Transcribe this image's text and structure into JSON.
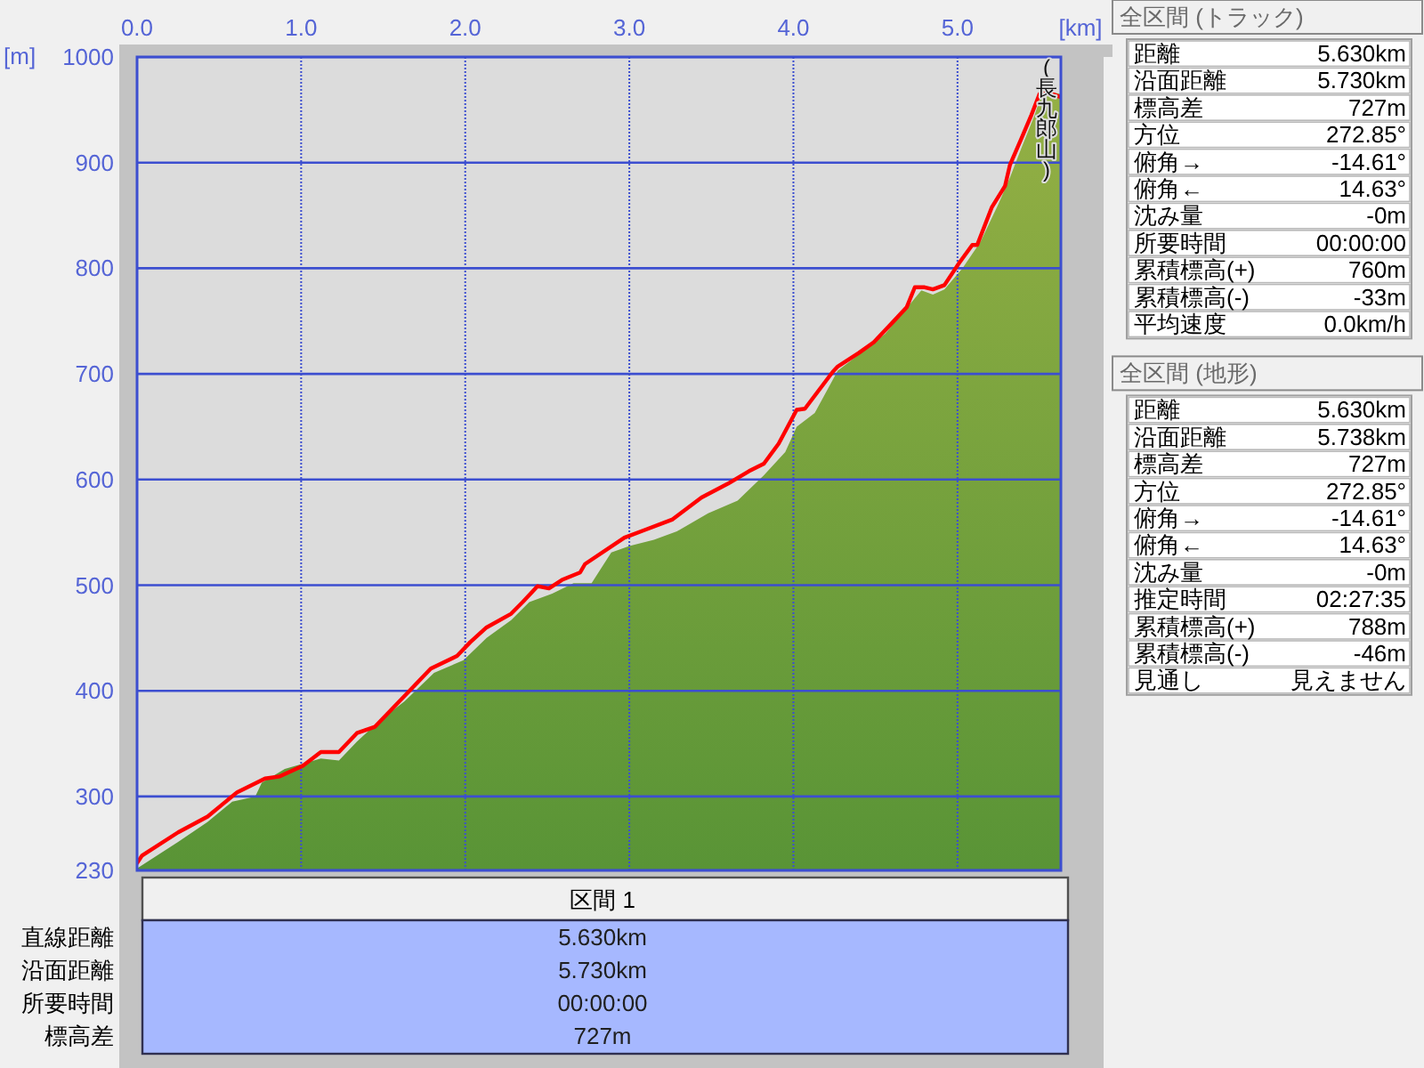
{
  "chart_data": [
    {
      "type": "area",
      "xlabel": "[km]",
      "ylabel": "[m]",
      "xlim": [
        0,
        5.63
      ],
      "ylim": [
        230,
        1000
      ],
      "xticks": [
        {
          "value": 0,
          "label": "0.0"
        },
        {
          "value": 1,
          "label": "1.0"
        },
        {
          "value": 2,
          "label": "2.0"
        },
        {
          "value": 3,
          "label": "3.0"
        },
        {
          "value": 4,
          "label": "4.0"
        },
        {
          "value": 5,
          "label": "5.0"
        }
      ],
      "yticks": [
        230,
        300,
        400,
        500,
        600,
        700,
        800,
        900,
        1000
      ],
      "grid": true,
      "annotations": [
        "(長九郎山)"
      ],
      "series": [
        {
          "type": "area",
          "color": "#6f9f3c",
          "x": [
            0,
            0.25,
            0.43,
            0.58,
            0.72,
            0.76,
            0.9,
            1.12,
            1.23,
            1.34,
            1.48,
            1.63,
            1.81,
            1.99,
            2.13,
            2.28,
            2.39,
            2.53,
            2.66,
            2.77,
            2.89,
            3.0,
            3.15,
            3.29,
            3.48,
            3.66,
            3.82,
            3.95,
            4.02,
            4.13,
            4.27,
            4.43,
            4.56,
            4.71,
            4.78,
            4.85,
            4.92,
            5.03,
            5.14,
            5.25,
            5.32,
            5.39,
            5.47,
            5.52,
            5.63
          ],
          "values": [
            232,
            257,
            276,
            295,
            300,
            313,
            326,
            336,
            334,
            352,
            372,
            390,
            417,
            429,
            450,
            467,
            484,
            492,
            502,
            502,
            531,
            537,
            543,
            551,
            568,
            580,
            604,
            626,
            650,
            663,
            703,
            722,
            738,
            766,
            779,
            775,
            780,
            800,
            825,
            861,
            886,
            914,
            945,
            968,
            965
          ]
        },
        {
          "type": "line",
          "color": "#ff0000",
          "x": [
            0,
            0.03,
            0.25,
            0.43,
            0.61,
            0.78,
            0.87,
            1.01,
            1.12,
            1.23,
            1.34,
            1.45,
            1.66,
            1.79,
            1.95,
            2.03,
            2.13,
            2.28,
            2.35,
            2.44,
            2.51,
            2.59,
            2.7,
            2.73,
            2.97,
            3.09,
            3.26,
            3.44,
            3.6,
            3.73,
            3.82,
            3.91,
            4.02,
            4.07,
            4.24,
            4.27,
            4.4,
            4.49,
            4.6,
            4.69,
            4.74,
            4.8,
            4.85,
            4.92,
            5.01,
            5.09,
            5.12,
            5.21,
            5.29,
            5.32,
            5.39,
            5.45,
            5.5,
            5.56,
            5.63
          ],
          "values": [
            237,
            244,
            266,
            281,
            304,
            317,
            319,
            329,
            342,
            342,
            360,
            366,
            400,
            421,
            433,
            446,
            460,
            473,
            484,
            499,
            497,
            505,
            512,
            520,
            545,
            552,
            562,
            583,
            596,
            608,
            615,
            634,
            666,
            667,
            702,
            707,
            720,
            730,
            748,
            763,
            782,
            782,
            780,
            784,
            805,
            822,
            822,
            858,
            878,
            898,
            923,
            945,
            965,
            966,
            962
          ]
        }
      ]
    },
    {
      "type": "other",
      "title": "全区間 (トラック)",
      "annotations": [
        "距離",
        "5.630km",
        "沿面距離",
        "5.730km",
        "標高差",
        "727m",
        "方位",
        "272.85°",
        "俯角→",
        "-14.61°",
        "俯角←",
        "14.63°",
        "沈み量",
        "-0m",
        "所要時間",
        "00:00:00",
        "累積標高(+)",
        "760m",
        "累積標高(-)",
        "-33m",
        "平均速度",
        "0.0km/h"
      ]
    },
    {
      "type": "other",
      "title": "全区間 (地形)",
      "annotations": [
        "距離",
        "5.630km",
        "沿面距離",
        "5.738km",
        "標高差",
        "727m",
        "方位",
        "272.85°",
        "俯角→",
        "-14.61°",
        "俯角←",
        "14.63°",
        "沈み量",
        "-0m",
        "推定時間",
        "02:27:35",
        "累積標高(+)",
        "788m",
        "累積標高(-)",
        "-46m",
        "見通し",
        "見えません"
      ]
    },
    {
      "type": "other",
      "title": "区間 1",
      "annotations": [
        "直線距離",
        "5.630km",
        "沿面距離",
        "5.730km",
        "所要時間",
        "00:00:00",
        "標高差",
        "727m"
      ]
    }
  ]
}
